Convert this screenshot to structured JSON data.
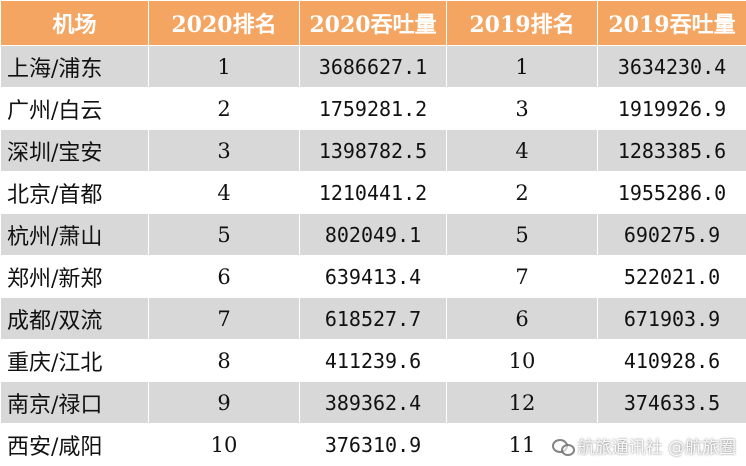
{
  "table": {
    "headers": [
      "机场",
      "2020排名",
      "2020吞吐量",
      "2019排名",
      "2019吞吐量"
    ],
    "rows": [
      [
        "上海/浦东",
        "1",
        "3686627.1",
        "1",
        "3634230.4"
      ],
      [
        "广州/白云",
        "2",
        "1759281.2",
        "3",
        "1919926.9"
      ],
      [
        "深圳/宝安",
        "3",
        "1398782.5",
        "4",
        "1283385.6"
      ],
      [
        "北京/首都",
        "4",
        "1210441.2",
        "2",
        "1955286.0"
      ],
      [
        "杭州/萧山",
        "5",
        "802049.1",
        "5",
        "690275.9"
      ],
      [
        "郑州/新郑",
        "6",
        "639413.4",
        "7",
        "522021.0"
      ],
      [
        "成都/双流",
        "7",
        "618527.7",
        "6",
        "671903.9"
      ],
      [
        "重庆/江北",
        "8",
        "411239.6",
        "10",
        "410928.6"
      ],
      [
        "南京/禄口",
        "9",
        "389362.4",
        "12",
        "374633.5"
      ],
      [
        "西安/咸阳",
        "10",
        "376310.9",
        "11",
        ""
      ]
    ]
  },
  "watermark": {
    "text": "航旅通讯社 @航旅圈",
    "icon": "wechat-logo-icon"
  },
  "colors": {
    "header_bg": "#f4a561",
    "header_text": "#ffffff",
    "row_shade": "#d8d8d8",
    "row_plain": "#ffffff"
  }
}
